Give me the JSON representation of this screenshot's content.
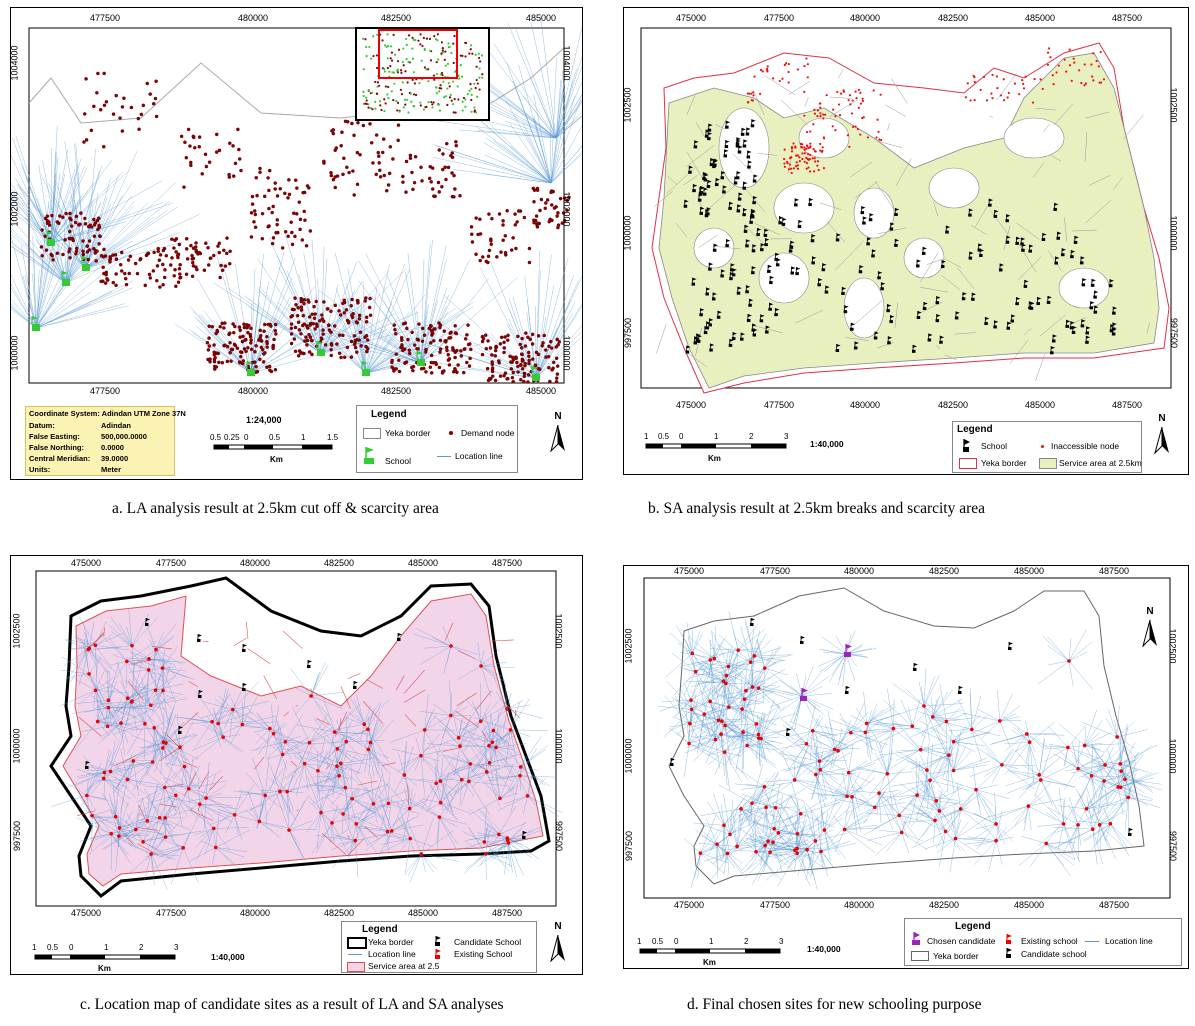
{
  "captions": {
    "a": "a. LA analysis result at 2.5km cut off & scarcity area",
    "b": "b. SA analysis result at 2.5km breaks and scarcity area",
    "c": "c. Location map of candidate sites as a result of LA and SA analyses",
    "d": "d. Final chosen sites for new schooling purpose"
  },
  "panel_a": {
    "x_ticks": [
      "477500",
      "480000",
      "482500",
      "485000"
    ],
    "y_ticks": [
      "1004000",
      "1002000",
      "1000000"
    ],
    "coord_system": {
      "title": "Coordinate System: Adindan UTM Zone 37N",
      "rows": [
        {
          "k": "Datum:",
          "v": "Adindan"
        },
        {
          "k": "False Easting:",
          "v": "500,000.0000"
        },
        {
          "k": "False Northing:",
          "v": "0.0000"
        },
        {
          "k": "Central Meridian:",
          "v": "39.0000"
        },
        {
          "k": "Units:",
          "v": "Meter"
        }
      ]
    },
    "scale_text": "1:24,000",
    "scale_labels": [
      "0.5",
      "0.25",
      "0",
      "0.5",
      "1",
      "1.5"
    ],
    "scale_unit": "Km",
    "legend": {
      "title": "Legend",
      "items": [
        "Yeka border",
        "Demand node",
        "School",
        "Location line"
      ]
    },
    "north": "N"
  },
  "panel_b": {
    "x_ticks": [
      "475000",
      "477500",
      "480000",
      "482500",
      "485000",
      "487500"
    ],
    "y_ticks": [
      "1002500",
      "1000000",
      "997500"
    ],
    "scale_text": "1:40,000",
    "scale_labels": [
      "1",
      "0.5",
      "0",
      "1",
      "2",
      "3"
    ],
    "scale_unit": "Km",
    "legend": {
      "title": "Legend",
      "items": [
        "School",
        "Inaccessible node",
        "Yeka border",
        "Service area at 2.5km"
      ]
    },
    "north": "N"
  },
  "panel_c": {
    "x_ticks": [
      "475000",
      "477500",
      "480000",
      "482500",
      "485000",
      "487500"
    ],
    "y_ticks": [
      "1002500",
      "1000000",
      "997500"
    ],
    "scale_text": "1:40,000",
    "scale_labels": [
      "1",
      "0.5",
      "0",
      "1",
      "2",
      "3"
    ],
    "scale_unit": "Km",
    "legend": {
      "title": "Legend",
      "items": [
        "Yeka border",
        "Candidate School",
        "Location line",
        "Existing School",
        "Service area at 2.5"
      ]
    },
    "north": "N"
  },
  "panel_d": {
    "x_ticks": [
      "475000",
      "477500",
      "480000",
      "482500",
      "485000",
      "487500"
    ],
    "y_ticks": [
      "1002500",
      "1000000",
      "997500"
    ],
    "scale_text": "1:40,000",
    "scale_labels": [
      "1",
      "0.5",
      "0",
      "1",
      "2",
      "3"
    ],
    "scale_unit": "Km",
    "legend": {
      "title": "Legend",
      "items": [
        "Chosen candidate",
        "Existing school",
        "Location line",
        "Yeka border",
        "Candidate school"
      ]
    },
    "north": "N"
  },
  "colors": {
    "demand_node": "#8b0000",
    "location_line": "#5b9bd5",
    "service_area": "#e8f0c0",
    "service_area_c": "#f3d5ea",
    "border_red": "#e05050",
    "school_green": "#33cc33",
    "chosen_purple": "#a020c0",
    "inaccessible": "#ee1111"
  }
}
